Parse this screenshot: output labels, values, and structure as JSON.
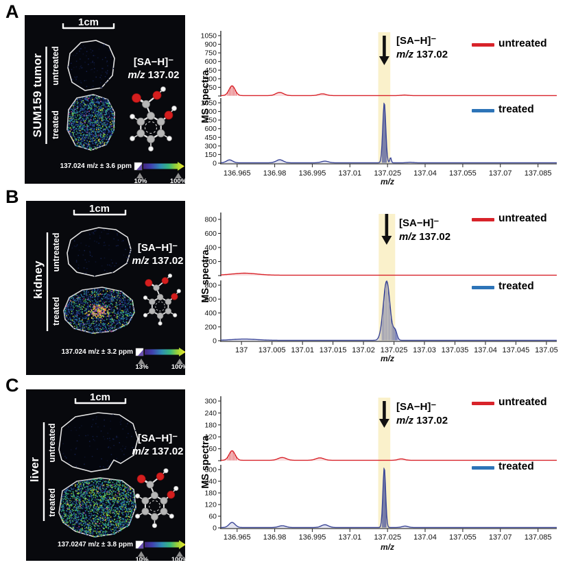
{
  "figure": {
    "legend": {
      "untreated": "untreated",
      "treated": "treated"
    },
    "annotation": {
      "formula": "[SA−H]⁻",
      "mz_prefix": "m/z",
      "mz_value": "137.02"
    },
    "ylabel": "MS spectra",
    "xlabel": "m/z"
  },
  "colors": {
    "untreated": "#d8232a",
    "treated_trace": "#3b4697",
    "treated_swatch": "#2d74b8",
    "highlight": "#faf1cb",
    "axis": "#333333"
  },
  "panels": [
    {
      "label": "A",
      "organ": "SUM159 tumor",
      "scale_bar": "1cm",
      "row1": "untreated",
      "row2": "treated",
      "ion_formula": "[SA−H]⁻",
      "mz_prefix": "m/z",
      "mz_value": "137.02",
      "colorbar_label": "137.024 m/z ± 3.6 ppm",
      "colorbar_min": "10%",
      "colorbar_max": "100%"
    },
    {
      "label": "B",
      "organ": "kidney",
      "scale_bar": "1cm",
      "row1": "untreated",
      "row2": "treated",
      "ion_formula": "[SA−H]⁻",
      "mz_prefix": "m/z",
      "mz_value": "137.02",
      "colorbar_label": "137.024 m/z ± 3.2 ppm",
      "colorbar_min": "13%",
      "colorbar_max": "100%"
    },
    {
      "label": "C",
      "organ": "liver",
      "scale_bar": "1cm",
      "row1": "untreated",
      "row2": "treated",
      "ion_formula": "[SA−H]⁻",
      "mz_prefix": "m/z",
      "mz_value": "137.02",
      "colorbar_label": "137.0247 m/z ± 3.8 ppm",
      "colorbar_min": "10%",
      "colorbar_max": "100%"
    }
  ],
  "chart_data": [
    {
      "type": "line",
      "panel": "A",
      "title": "SUM159 tumor MS spectra",
      "xlabel": "m/z",
      "ylabel": "MS spectra",
      "xlim": [
        136.9585,
        137.0925
      ],
      "xtick_values": [
        136.965,
        136.98,
        136.995,
        137.01,
        137.025,
        137.04,
        137.055,
        137.07,
        137.085
      ],
      "xtick_labels": [
        "136.965",
        "136.98",
        "136.995",
        "137.01",
        "137.025",
        "137.04",
        "137.055",
        "137.07",
        "137.085"
      ],
      "ylim": [
        0,
        1100
      ],
      "ytick_values": [
        0,
        150,
        300,
        450,
        600,
        750,
        900,
        1050
      ],
      "highlight_band": [
        137.0213,
        137.0261
      ],
      "arrow_mz": 137.0237,
      "series": [
        {
          "name": "untreated",
          "color": "#d8232a",
          "peaks": [
            {
              "mz": 136.963,
              "intensity": 170,
              "width": 0.0012
            },
            {
              "mz": 136.982,
              "intensity": 55,
              "width": 0.0015
            },
            {
              "mz": 136.999,
              "intensity": 30,
              "width": 0.0015
            },
            {
              "mz": 137.0318,
              "intensity": 9,
              "width": 0.0013
            }
          ]
        },
        {
          "name": "treated",
          "color": "#3b4697",
          "peaks": [
            {
              "mz": 136.962,
              "intensity": 50,
              "width": 0.0012
            },
            {
              "mz": 136.982,
              "intensity": 52,
              "width": 0.0014
            },
            {
              "mz": 137.0,
              "intensity": 28,
              "width": 0.0014
            },
            {
              "mz": 137.0237,
              "intensity": 1045,
              "width": 0.0006
            },
            {
              "mz": 137.0262,
              "intensity": 90,
              "width": 0.0003
            },
            {
              "mz": 137.034,
              "intensity": 8,
              "width": 0.0012
            }
          ]
        }
      ]
    },
    {
      "type": "line",
      "panel": "B",
      "title": "kidney MS spectra",
      "xlabel": "m/z",
      "ylabel": "MS spectra",
      "xlim": [
        136.9966,
        137.0517
      ],
      "xtick_values": [
        137.0,
        137.005,
        137.01,
        137.015,
        137.02,
        137.025,
        137.03,
        137.035,
        137.04,
        137.045,
        137.05
      ],
      "xtick_labels": [
        "137",
        "137.005",
        "137.01",
        "137.015",
        "137.02",
        "137.025",
        "137.03",
        "137.035",
        "137.04",
        "137.045",
        "137.05"
      ],
      "ylim": [
        0,
        900
      ],
      "ytick_values": [
        0,
        200,
        400,
        600,
        800
      ],
      "highlight_band": [
        137.0225,
        137.0252
      ],
      "arrow_mz": 137.0238,
      "series": [
        {
          "name": "untreated",
          "color": "#d8232a",
          "peaks": [
            {
              "mz": 137.0005,
              "intensity": 28,
              "width": 0.002
            }
          ]
        },
        {
          "name": "treated",
          "color": "#3b4697",
          "peaks": [
            {
              "mz": 137.0005,
              "intensity": 18,
              "width": 0.002
            },
            {
              "mz": 137.0238,
              "intensity": 855,
              "width": 0.00055
            },
            {
              "mz": 137.0252,
              "intensity": 130,
              "width": 0.0003
            }
          ]
        }
      ]
    },
    {
      "type": "line",
      "panel": "C",
      "title": "liver MS spectra",
      "xlabel": "m/z",
      "ylabel": "MS spectra",
      "xlim": [
        136.9585,
        137.0925
      ],
      "xtick_values": [
        136.965,
        136.98,
        136.995,
        137.01,
        137.025,
        137.04,
        137.055,
        137.07,
        137.085
      ],
      "xtick_labels": [
        "136.965",
        "136.98",
        "136.995",
        "137.01",
        "137.025",
        "137.04",
        "137.055",
        "137.07",
        "137.085"
      ],
      "ylim": [
        0,
        315
      ],
      "ytick_values": [
        0,
        60,
        120,
        180,
        240,
        300
      ],
      "highlight_band": [
        137.0213,
        137.0261
      ],
      "arrow_mz": 137.0237,
      "series": [
        {
          "name": "untreated",
          "color": "#d8232a",
          "peaks": [
            {
              "mz": 136.963,
              "intensity": 48,
              "width": 0.0012
            },
            {
              "mz": 136.983,
              "intensity": 14,
              "width": 0.0016
            },
            {
              "mz": 136.998,
              "intensity": 12,
              "width": 0.0016
            },
            {
              "mz": 137.0305,
              "intensity": 7,
              "width": 0.0013
            }
          ]
        },
        {
          "name": "treated",
          "color": "#3b4697",
          "peaks": [
            {
              "mz": 136.963,
              "intensity": 26,
              "width": 0.0012
            },
            {
              "mz": 136.983,
              "intensity": 9,
              "width": 0.0014
            },
            {
              "mz": 137.0,
              "intensity": 14,
              "width": 0.0014
            },
            {
              "mz": 137.0237,
              "intensity": 308,
              "width": 0.00055
            },
            {
              "mz": 137.032,
              "intensity": 7,
              "width": 0.0012
            }
          ]
        }
      ]
    }
  ]
}
